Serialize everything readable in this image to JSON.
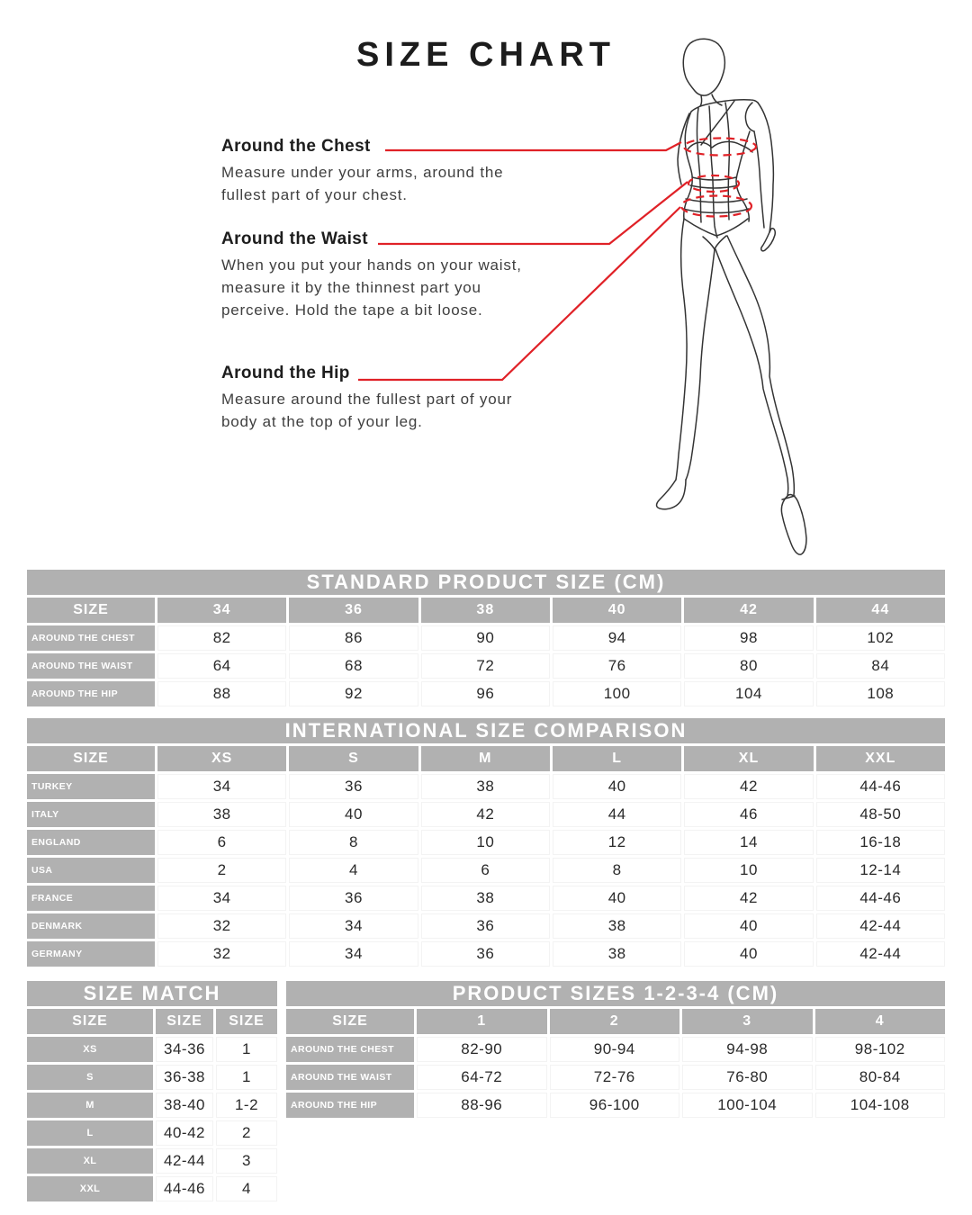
{
  "page": {
    "title": "SIZE CHART"
  },
  "annotations": {
    "chest": {
      "heading": "Around the Chest",
      "body": "Measure under your arms, around the\nfullest part of your chest."
    },
    "waist": {
      "heading": "Around the Waist",
      "body": "When you put your hands on your waist,\nmeasure it by the thinnest part you\nperceive. Hold the tape a bit loose."
    },
    "hip": {
      "heading": "Around the Hip",
      "body": "Measure around the fullest part of your\nbody at the top of your leg."
    }
  },
  "figure": {
    "name": "fashion-croquis-with-measure-lines"
  },
  "colors": {
    "accent_red": "#e02127",
    "table_gray": "#b1b1b1",
    "text_dark": "#1c1c1c",
    "text_body": "#3f3f3f"
  },
  "tables": {
    "standard": {
      "title": "STANDARD PRODUCT SIZE (CM)",
      "header": [
        "SIZE",
        "34",
        "36",
        "38",
        "40",
        "42",
        "44"
      ],
      "rows": [
        {
          "label": "AROUND THE CHEST",
          "values": [
            "82",
            "86",
            "90",
            "94",
            "98",
            "102"
          ]
        },
        {
          "label": "AROUND THE WAIST",
          "values": [
            "64",
            "68",
            "72",
            "76",
            "80",
            "84"
          ]
        },
        {
          "label": "AROUND THE HIP",
          "values": [
            "88",
            "92",
            "96",
            "100",
            "104",
            "108"
          ]
        }
      ]
    },
    "international": {
      "title": "INTERNATIONAL SIZE COMPARISON",
      "header": [
        "SIZE",
        "XS",
        "S",
        "M",
        "L",
        "XL",
        "XXL"
      ],
      "rows": [
        {
          "label": "TURKEY",
          "values": [
            "34",
            "36",
            "38",
            "40",
            "42",
            "44-46"
          ]
        },
        {
          "label": "ITALY",
          "values": [
            "38",
            "40",
            "42",
            "44",
            "46",
            "48-50"
          ]
        },
        {
          "label": "ENGLAND",
          "values": [
            "6",
            "8",
            "10",
            "12",
            "14",
            "16-18"
          ]
        },
        {
          "label": "USA",
          "values": [
            "2",
            "4",
            "6",
            "8",
            "10",
            "12-14"
          ]
        },
        {
          "label": "FRANCE",
          "values": [
            "34",
            "36",
            "38",
            "40",
            "42",
            "44-46"
          ]
        },
        {
          "label": "DENMARK",
          "values": [
            "32",
            "34",
            "36",
            "38",
            "40",
            "42-44"
          ]
        },
        {
          "label": "GERMANY",
          "values": [
            "32",
            "34",
            "36",
            "38",
            "40",
            "42-44"
          ]
        }
      ]
    },
    "size_match": {
      "title": "SIZE MATCH",
      "header": [
        "SIZE",
        "SIZE",
        "SIZE"
      ],
      "rows": [
        {
          "label": "XS",
          "values": [
            "34-36",
            "1"
          ]
        },
        {
          "label": "S",
          "values": [
            "36-38",
            "1"
          ]
        },
        {
          "label": "M",
          "values": [
            "38-40",
            "1-2"
          ]
        },
        {
          "label": "L",
          "values": [
            "40-42",
            "2"
          ]
        },
        {
          "label": "XL",
          "values": [
            "42-44",
            "3"
          ]
        },
        {
          "label": "XXL",
          "values": [
            "44-46",
            "4"
          ]
        }
      ]
    },
    "product_sizes": {
      "title": "PRODUCT SIZES 1-2-3-4 (CM)",
      "header": [
        "SIZE",
        "1",
        "2",
        "3",
        "4"
      ],
      "rows": [
        {
          "label": "AROUND THE CHEST",
          "values": [
            "82-90",
            "90-94",
            "94-98",
            "98-102"
          ]
        },
        {
          "label": "AROUND THE WAIST",
          "values": [
            "64-72",
            "72-76",
            "76-80",
            "80-84"
          ]
        },
        {
          "label": "AROUND THE HIP",
          "values": [
            "88-96",
            "96-100",
            "100-104",
            "104-108"
          ]
        }
      ]
    }
  }
}
